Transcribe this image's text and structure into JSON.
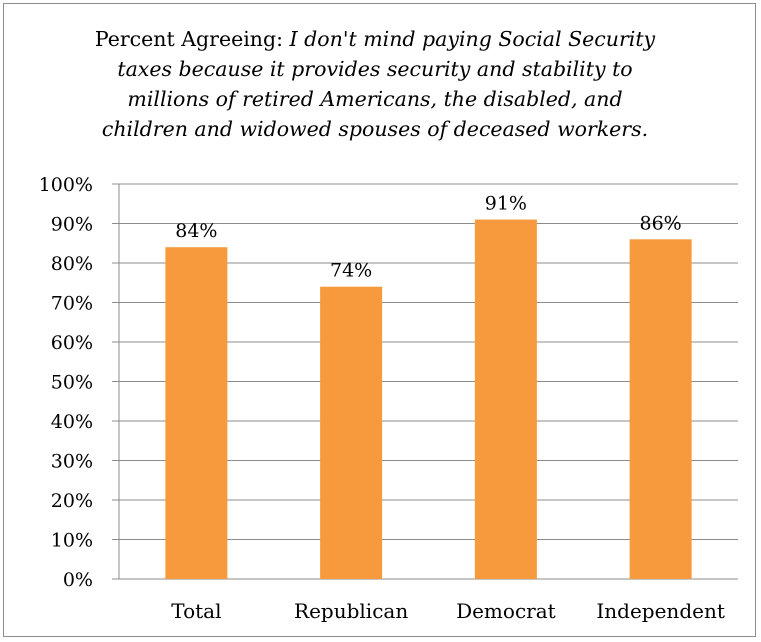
{
  "chart_data": {
    "type": "bar",
    "title_prefix": "Percent Agreeing:",
    "title_lines": [
      "I don't mind paying Social Security",
      "taxes because it provides security and stability to",
      "millions of retired Americans, the disabled, and",
      "children and widowed spouses of deceased workers."
    ],
    "categories": [
      "Total",
      "Republican",
      "Democrat",
      "Independent"
    ],
    "values": [
      84,
      74,
      91,
      86
    ],
    "data_labels": [
      "84%",
      "74%",
      "91%",
      "86%"
    ],
    "ylim": [
      0,
      100
    ],
    "yticks": [
      "0%",
      "10%",
      "20%",
      "30%",
      "40%",
      "50%",
      "60%",
      "70%",
      "80%",
      "90%",
      "100%"
    ],
    "grid": true,
    "legend": "none",
    "bar_color": "#F79A3E",
    "grid_color": "#8c8c8c"
  }
}
